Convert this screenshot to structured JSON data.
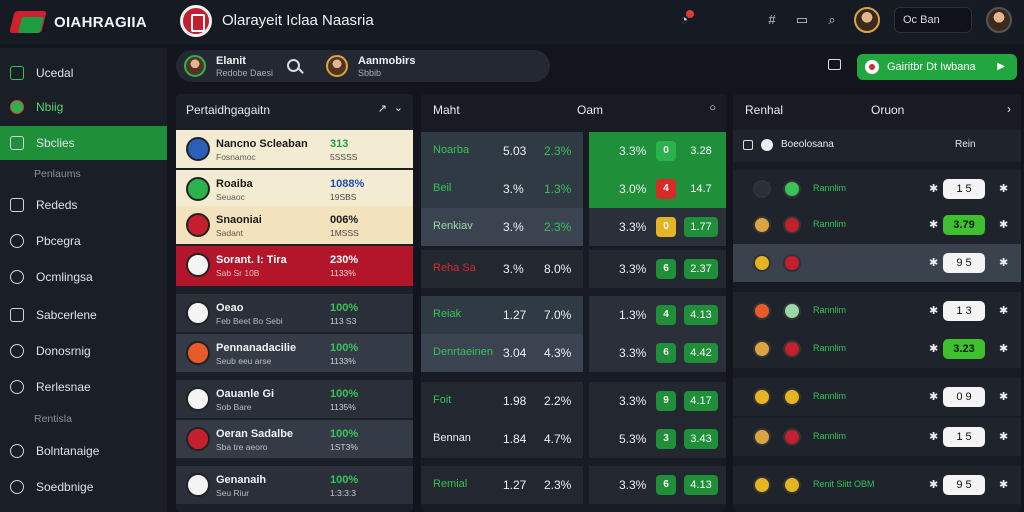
{
  "header": {
    "brand": "OIAHRAGIIA",
    "title": "Olarayeit Iclaa Naasria",
    "user_name": "Oc Ban"
  },
  "sidebar": {
    "items": [
      {
        "label": "Ucedal",
        "icon": "home-icon"
      },
      {
        "label": "Nbiig",
        "icon": "live-icon"
      },
      {
        "label": "Sbclies",
        "icon": "sports-icon"
      },
      {
        "label": "Penlaums",
        "icon": ""
      },
      {
        "label": "Rededs",
        "icon": "document-icon"
      },
      {
        "label": "Pbcegra",
        "icon": "person-icon"
      },
      {
        "label": "Ocmlingsa",
        "icon": "chat-icon"
      },
      {
        "label": "Sabcerlene",
        "icon": "list-icon"
      },
      {
        "label": "Donosrnig",
        "icon": "clock-icon"
      },
      {
        "label": "Rerlesnae",
        "icon": "settings-icon"
      },
      {
        "label": "Rentisla",
        "icon": ""
      },
      {
        "label": "Bolntanaige",
        "icon": "globe-icon"
      },
      {
        "label": "Soedbnige",
        "icon": "help-icon"
      }
    ]
  },
  "search": {
    "user_title": "Elanit",
    "user_sub": "Redobe Daesi",
    "match_title": "Aanmobirs",
    "match_sub": "Sbbib"
  },
  "cta": {
    "label": "Gairitbr Dt Iwbana"
  },
  "left_panel": {
    "title": "Pertaidhgagaitn",
    "rows": [
      {
        "name": "Nancno Scleaban",
        "sub": "Fosnamoc",
        "pct": "313",
        "pct_sub": "5SSSS"
      },
      {
        "name": "Roaiba",
        "sub": "Seuaoc",
        "pct": "1088%",
        "pct_sub": "19SBS"
      },
      {
        "name": "Snaoniai",
        "sub": "Sadant",
        "pct": "006%",
        "pct_sub": "1MSSS"
      },
      {
        "name": "Sorant. I: Tira",
        "sub": "Sab Sr 10B",
        "pct": "230%",
        "pct_sub": "1133%"
      },
      {
        "name": "Oeao",
        "sub": "Feb Beet Bo Sebi",
        "pct": "100%",
        "pct_sub": "113 S3"
      },
      {
        "name": "Pennanadacilie",
        "sub": "Seub eeu arse",
        "pct": "100%",
        "pct_sub": "1133%"
      },
      {
        "name": "Oauanle Gi",
        "sub": "Sob Bare",
        "pct": "100%",
        "pct_sub": "1135%"
      },
      {
        "name": "Oeran Sadalbe",
        "sub": "Sba tre aeoro",
        "pct": "100%",
        "pct_sub": "1ST3%"
      },
      {
        "name": "Genanaih",
        "sub": "Seu Riur",
        "pct": "100%",
        "pct_sub": "1:3:3:3"
      }
    ]
  },
  "mid_panel": {
    "title_a": "Maht",
    "title_b": "Oam",
    "rows": [
      {
        "label": "Noarba",
        "v1": "5.03",
        "v2": "2.3%",
        "v3": "3.3%",
        "chip": "0",
        "odd": "3.28"
      },
      {
        "label": "Beil",
        "v1": "3.%",
        "v2": "1.3%",
        "v3": "3.0%",
        "chip": "4",
        "odd": "14.7"
      },
      {
        "label": "Renkiav",
        "v1": "3.%",
        "v2": "2.3%",
        "v3": "3.3%",
        "chip": "0",
        "odd": "1.77"
      },
      {
        "label": "Reha Sa",
        "v1": "3.%",
        "v2": "8.0%",
        "v3": "3.3%",
        "chip": "6",
        "odd": "2.37"
      },
      {
        "label": "Reiak",
        "v1": "1.27",
        "v2": "7.0%",
        "v3": "1.3%",
        "chip": "4",
        "odd": "4.13"
      },
      {
        "label": "Denrtaeinen",
        "v1": "3.04",
        "v2": "4.3%",
        "v3": "3.3%",
        "chip": "6",
        "odd": "4.42"
      },
      {
        "label": "Foit",
        "v1": "1.98",
        "v2": "2.2%",
        "v3": "3.3%",
        "chip": "9",
        "odd": "4.17"
      },
      {
        "label": "Bennan",
        "v1": "1.84",
        "v2": "4.7%",
        "v3": "5.3%",
        "chip": "3",
        "odd": "3.43"
      },
      {
        "label": "Remial",
        "v1": "1.27",
        "v2": "2.3%",
        "v3": "3.3%",
        "chip": "6",
        "odd": "4.13"
      }
    ]
  },
  "right_panel": {
    "title_a": "Renhal",
    "title_b": "Oruon",
    "sub_head": "Boeolosana",
    "sub_head_right": "Rein",
    "rows": [
      {
        "text": "Rannlim",
        "score": "1 5",
        "hl": false
      },
      {
        "text": "Rannlim",
        "score": "3.79",
        "hl": true
      },
      {
        "text": "",
        "score": "9 5",
        "hl": false
      },
      {
        "text": "Rannlim",
        "score": "1 3",
        "hl": false
      },
      {
        "text": "Rannlim",
        "score": "3.23",
        "hl": true
      },
      {
        "text": "Rannlim",
        "score": "0 9",
        "hl": false
      },
      {
        "text": "Rannlim",
        "score": "1 5",
        "hl": false
      },
      {
        "text": "Renit Siitt OBM",
        "score": "9 5",
        "hl": false
      }
    ]
  }
}
